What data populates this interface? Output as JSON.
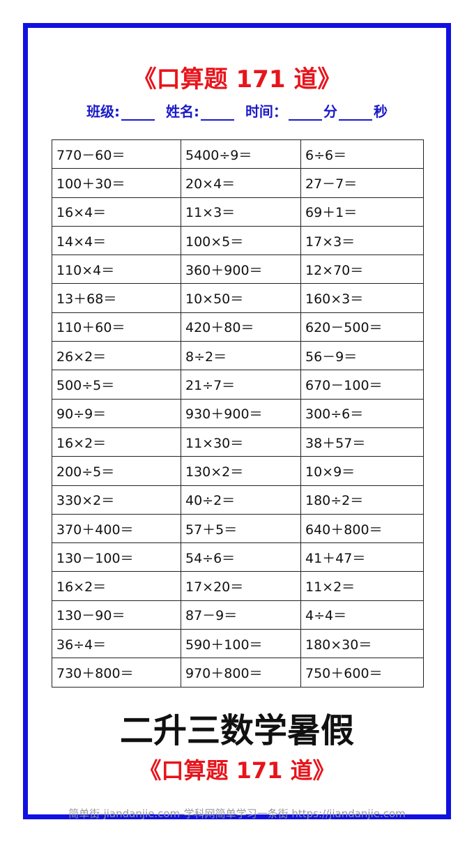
{
  "header": {
    "title": "《口算题 171 道》",
    "fields": [
      "班级:",
      "姓名:",
      "时间：",
      "分",
      "秒"
    ]
  },
  "table": {
    "rows": [
      [
        "770－60＝",
        "5400÷9＝",
        "6÷6＝"
      ],
      [
        "100＋30＝",
        "20×4＝",
        "27－7＝"
      ],
      [
        "16×4＝",
        "11×3＝",
        "69＋1＝"
      ],
      [
        "14×4＝",
        "100×5＝",
        "17×3＝"
      ],
      [
        "110×4＝",
        "360＋900＝",
        "12×70＝"
      ],
      [
        "13＋68＝",
        "10×50＝",
        "160×3＝"
      ],
      [
        "110＋60＝",
        "420＋80＝",
        "620－500＝"
      ],
      [
        "26×2＝",
        "8÷2＝",
        "56－9＝"
      ],
      [
        "500÷5＝",
        "21÷7＝",
        "670－100＝"
      ],
      [
        "90÷9＝",
        "930＋900＝",
        "300÷6＝"
      ],
      [
        "16×2＝",
        "11×30＝",
        "38＋57＝"
      ],
      [
        "200÷5＝",
        "130×2＝",
        "10×9＝"
      ],
      [
        "330×2＝",
        "40÷2＝",
        "180÷2＝"
      ],
      [
        "370＋400＝",
        "57＋5＝",
        "640＋800＝"
      ],
      [
        "130－100＝",
        "54÷6＝",
        "41＋47＝"
      ],
      [
        "16×2＝",
        "17×20＝",
        "11×2＝"
      ],
      [
        "130－90＝",
        "87－9＝",
        "4÷4＝"
      ],
      [
        "36÷4＝",
        "590＋100＝",
        "180×30＝"
      ],
      [
        "730＋800＝",
        "970＋800＝",
        "750＋600＝"
      ]
    ]
  },
  "footer": {
    "heading": "二升三数学暑假",
    "subheading": "《口算题 171 道》",
    "watermark": "简单街-jiandanjie.com-学科网简单学习一条街 https://jiandanjie.com"
  }
}
